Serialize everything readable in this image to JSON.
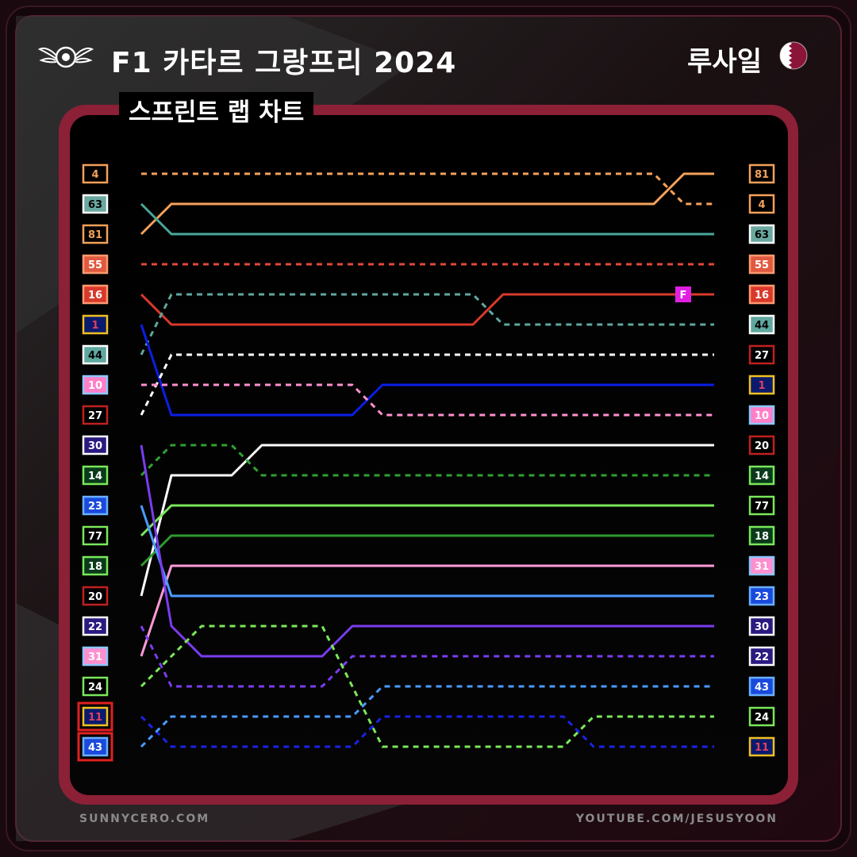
{
  "header": {
    "title": "F1 카타르 그랑프리 2024",
    "country": "루사일",
    "logo_icon": "wings-logo-icon",
    "flag_icon": "qatar-flag-icon"
  },
  "subtitle": "스프린트 랩 차트",
  "footer": {
    "left": "SUNNYCERO.COM",
    "right": "YOUTUBE.COM/JESUSYOON"
  },
  "colors": {
    "frame": "#8b2036",
    "panel": "#000000",
    "background": "#1a0a10"
  },
  "chart_data": {
    "type": "line",
    "title": "스프린트 랩 차트",
    "x": [
      0,
      1,
      2,
      3,
      4,
      5,
      6,
      7,
      8,
      9,
      10,
      11,
      12,
      13,
      14,
      15,
      16,
      17,
      18,
      19
    ],
    "y_axis": "position (1 at top, 20 at bottom)",
    "start_grid": [
      "4",
      "63",
      "81",
      "55",
      "16",
      "1",
      "44",
      "10",
      "27",
      "30",
      "14",
      "23",
      "77",
      "18",
      "20",
      "22",
      "31",
      "24",
      "11",
      "43"
    ],
    "final_order": [
      "81",
      "4",
      "63",
      "55",
      "16",
      "44",
      "27",
      "1",
      "10",
      "20",
      "14",
      "77",
      "18",
      "31",
      "23",
      "30",
      "22",
      "43",
      "24",
      "11"
    ],
    "highlighted_start": [
      "11",
      "43"
    ],
    "fastest_lap": {
      "driver": "16",
      "label": "F",
      "lap": 18
    },
    "series": [
      {
        "name": "4",
        "color": "#f5a15a",
        "dashed": true,
        "positions": [
          1,
          1,
          1,
          1,
          1,
          1,
          1,
          1,
          1,
          1,
          1,
          1,
          1,
          1,
          1,
          1,
          1,
          1,
          2,
          2
        ]
      },
      {
        "name": "81",
        "color": "#f5a15a",
        "dashed": false,
        "positions": [
          3,
          2,
          2,
          2,
          2,
          2,
          2,
          2,
          2,
          2,
          2,
          2,
          2,
          2,
          2,
          2,
          2,
          2,
          1,
          1
        ]
      },
      {
        "name": "63",
        "color": "#4aa79a",
        "dashed": false,
        "positions": [
          2,
          3,
          3,
          3,
          3,
          3,
          3,
          3,
          3,
          3,
          3,
          3,
          3,
          3,
          3,
          3,
          3,
          3,
          3,
          3
        ]
      },
      {
        "name": "55",
        "color": "#e0493a",
        "dashed": true,
        "positions": [
          4,
          4,
          4,
          4,
          4,
          4,
          4,
          4,
          4,
          4,
          4,
          4,
          4,
          4,
          4,
          4,
          4,
          4,
          4,
          4
        ]
      },
      {
        "name": "16",
        "color": "#d8392b",
        "dashed": false,
        "positions": [
          5,
          6,
          6,
          6,
          6,
          6,
          6,
          6,
          6,
          6,
          6,
          6,
          5,
          5,
          5,
          5,
          5,
          5,
          5,
          5
        ]
      },
      {
        "name": "44",
        "color": "#5fa8a0",
        "dashed": true,
        "positions": [
          7,
          5,
          5,
          5,
          5,
          5,
          5,
          5,
          5,
          5,
          5,
          5,
          6,
          6,
          6,
          6,
          6,
          6,
          6,
          6
        ]
      },
      {
        "name": "1",
        "color": "#0a1ee6",
        "dashed": false,
        "positions": [
          6,
          9,
          9,
          9,
          9,
          9,
          9,
          9,
          8,
          8,
          8,
          8,
          8,
          8,
          8,
          8,
          8,
          8,
          8,
          8
        ]
      },
      {
        "name": "27",
        "color": "#ffffff",
        "dashed": true,
        "positions": [
          9,
          7,
          7,
          7,
          7,
          7,
          7,
          7,
          7,
          7,
          7,
          7,
          7,
          7,
          7,
          7,
          7,
          7,
          7,
          7
        ]
      },
      {
        "name": "10",
        "color": "#ff8fd0",
        "dashed": true,
        "positions": [
          8,
          8,
          8,
          8,
          8,
          8,
          8,
          8,
          9,
          9,
          9,
          9,
          9,
          9,
          9,
          9,
          9,
          9,
          9,
          9
        ]
      },
      {
        "name": "20",
        "color": "#ffffff",
        "dashed": false,
        "positions": [
          15,
          11,
          11,
          11,
          10,
          10,
          10,
          10,
          10,
          10,
          10,
          10,
          10,
          10,
          10,
          10,
          10,
          10,
          10,
          10
        ]
      },
      {
        "name": "14",
        "color": "#2fa02f",
        "dashed": true,
        "positions": [
          11,
          10,
          10,
          10,
          11,
          11,
          11,
          11,
          11,
          11,
          11,
          11,
          11,
          11,
          11,
          11,
          11,
          11,
          11,
          11
        ]
      },
      {
        "name": "77",
        "color": "#7ae85a",
        "dashed": false,
        "positions": [
          13,
          12,
          12,
          12,
          12,
          12,
          12,
          12,
          12,
          12,
          12,
          12,
          12,
          12,
          12,
          12,
          12,
          12,
          12,
          12
        ]
      },
      {
        "name": "18",
        "color": "#2f9a2f",
        "dashed": false,
        "positions": [
          14,
          13,
          13,
          13,
          13,
          13,
          13,
          13,
          13,
          13,
          13,
          13,
          13,
          13,
          13,
          13,
          13,
          13,
          13,
          13
        ]
      },
      {
        "name": "31",
        "color": "#ff9ad8",
        "dashed": false,
        "positions": [
          17,
          14,
          14,
          14,
          14,
          14,
          14,
          14,
          14,
          14,
          14,
          14,
          14,
          14,
          14,
          14,
          14,
          14,
          14,
          14
        ]
      },
      {
        "name": "23",
        "color": "#4a9aff",
        "dashed": false,
        "positions": [
          12,
          15,
          15,
          15,
          15,
          15,
          15,
          15,
          15,
          15,
          15,
          15,
          15,
          15,
          15,
          15,
          15,
          15,
          15,
          15
        ]
      },
      {
        "name": "30",
        "color": "#7a3cf0",
        "dashed": false,
        "positions": [
          10,
          16,
          17,
          17,
          17,
          17,
          17,
          16,
          16,
          16,
          16,
          16,
          16,
          16,
          16,
          16,
          16,
          16,
          16,
          16
        ]
      },
      {
        "name": "22",
        "color": "#7a3cf0",
        "dashed": true,
        "positions": [
          16,
          18,
          18,
          18,
          18,
          18,
          18,
          17,
          17,
          17,
          17,
          17,
          17,
          17,
          17,
          17,
          17,
          17,
          17,
          17
        ]
      },
      {
        "name": "24",
        "color": "#7ae85a",
        "dashed": true,
        "positions": [
          18,
          17,
          16,
          16,
          16,
          16,
          16,
          18,
          20,
          20,
          20,
          20,
          20,
          20,
          20,
          19,
          19,
          19,
          19,
          19
        ]
      },
      {
        "name": "11",
        "color": "#1a22e6",
        "dashed": true,
        "positions": [
          19,
          20,
          20,
          20,
          20,
          20,
          20,
          20,
          19,
          19,
          19,
          19,
          19,
          19,
          19,
          20,
          20,
          20,
          20,
          20
        ]
      },
      {
        "name": "43",
        "color": "#4a9aff",
        "dashed": true,
        "positions": [
          20,
          19,
          19,
          19,
          19,
          19,
          19,
          19,
          18,
          18,
          18,
          18,
          18,
          18,
          18,
          18,
          18,
          18,
          18,
          18
        ]
      }
    ],
    "driver_box_style": {
      "4": {
        "bg": "#000000",
        "border": "#f5a15a",
        "text": "#f5a15a"
      },
      "63": {
        "bg": "#6aa8a0",
        "border": "#ffffff",
        "text": "#000000"
      },
      "81": {
        "bg": "#000000",
        "border": "#f5a15a",
        "text": "#f5a15a"
      },
      "55": {
        "bg": "#e05a40",
        "border": "#ff9a70",
        "text": "#ffffff"
      },
      "16": {
        "bg": "#d8392b",
        "border": "#ff9a70",
        "text": "#ffffff"
      },
      "1": {
        "bg": "#0a1a6e",
        "border": "#f0c020",
        "text": "#e04060"
      },
      "44": {
        "bg": "#5fa8a0",
        "border": "#ffffff",
        "text": "#000000"
      },
      "10": {
        "bg": "#ff7fc8",
        "border": "#8ac8ff",
        "text": "#ffffff"
      },
      "27": {
        "bg": "#000000",
        "border": "#c02020",
        "text": "#ffffff"
      },
      "30": {
        "bg": "#2a1a80",
        "border": "#ffffff",
        "text": "#ffffff"
      },
      "14": {
        "bg": "#0a3a1a",
        "border": "#7ae85a",
        "text": "#ffffff"
      },
      "23": {
        "bg": "#1a4adc",
        "border": "#6ab0ff",
        "text": "#ffffff"
      },
      "77": {
        "bg": "#000000",
        "border": "#7ae85a",
        "text": "#ffffff"
      },
      "18": {
        "bg": "#0a3a1a",
        "border": "#7ae85a",
        "text": "#ffffff"
      },
      "20": {
        "bg": "#000000",
        "border": "#c02020",
        "text": "#ffffff"
      },
      "22": {
        "bg": "#2a1a80",
        "border": "#ffffff",
        "text": "#ffffff"
      },
      "31": {
        "bg": "#ff8fd0",
        "border": "#8ac8ff",
        "text": "#ffffff"
      },
      "24": {
        "bg": "#000000",
        "border": "#7ae85a",
        "text": "#ffffff"
      },
      "11": {
        "bg": "#0a1a6e",
        "border": "#f0c020",
        "text": "#e04060"
      },
      "43": {
        "bg": "#1a4adc",
        "border": "#6ab0ff",
        "text": "#ffffff"
      }
    }
  }
}
